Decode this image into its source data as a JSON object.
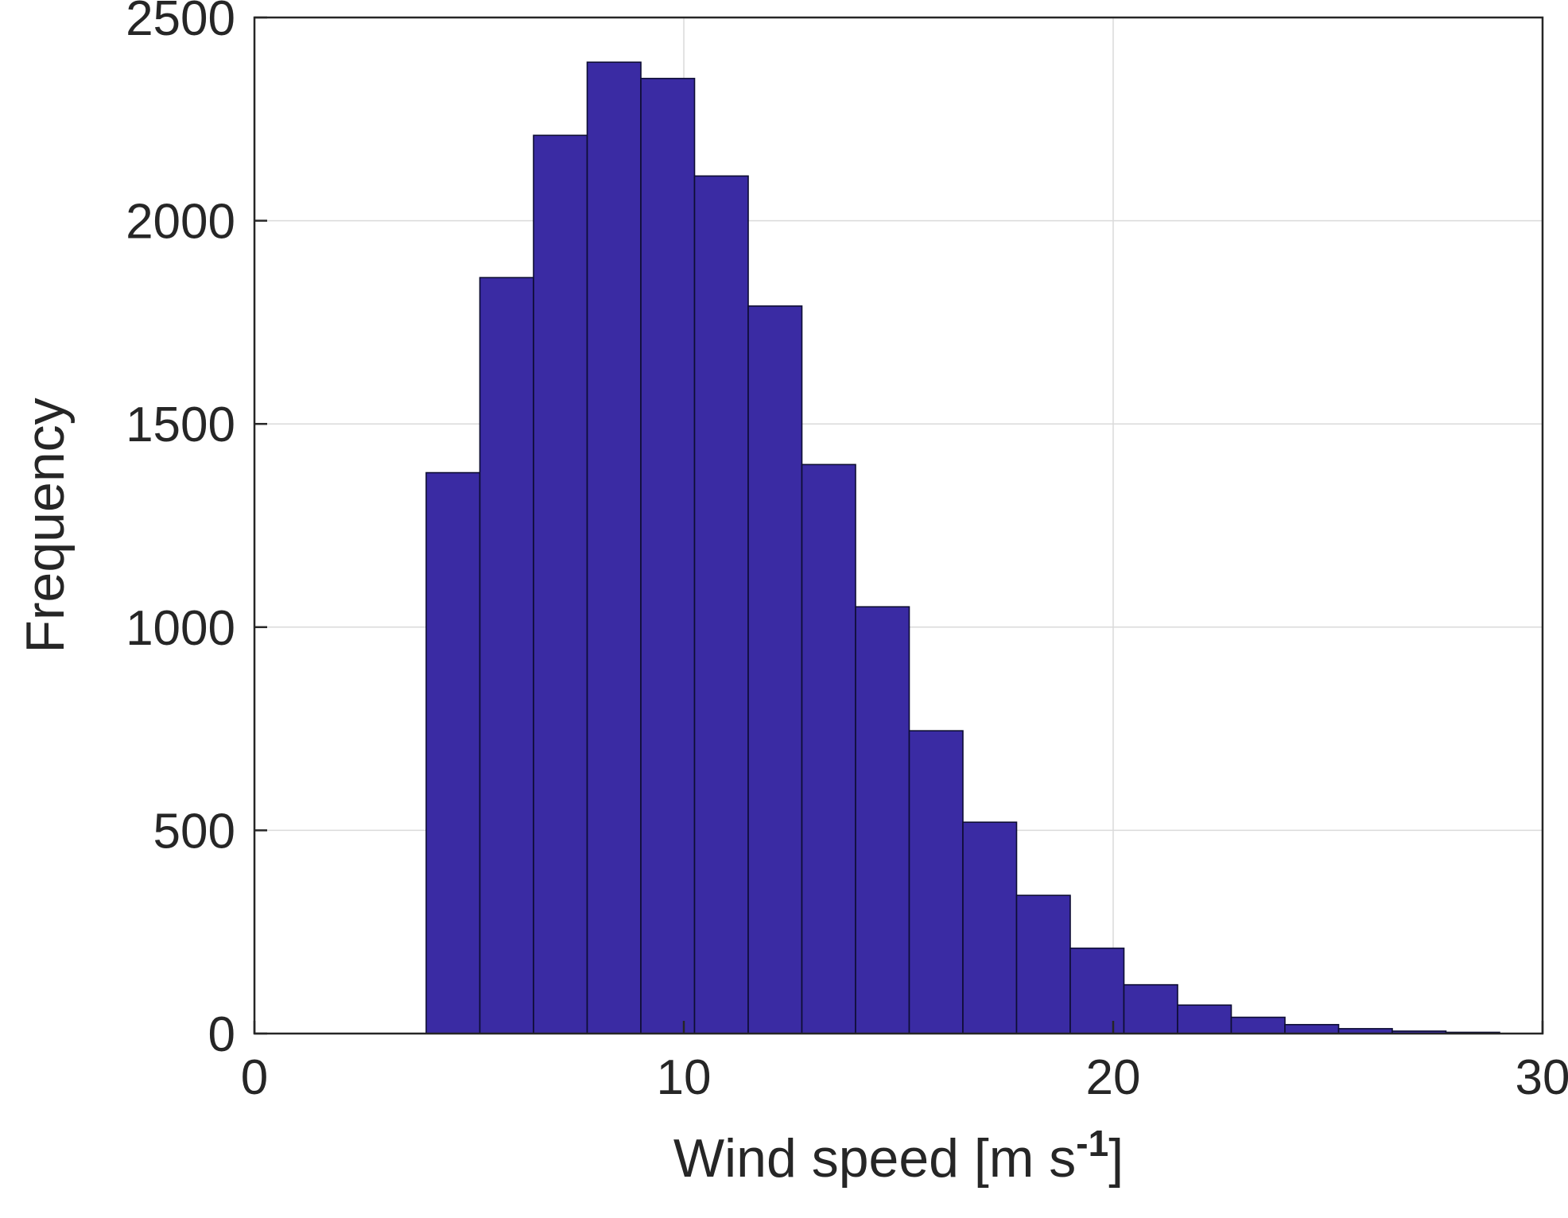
{
  "chart_data": {
    "type": "bar",
    "subtype": "histogram",
    "title": "",
    "ylabel": "Frequency",
    "xlabel_text": "Wind speed [m s-1]",
    "xlabel_parts": [
      "Wind speed [m s",
      "-1",
      "]"
    ],
    "xlim": [
      0,
      30
    ],
    "ylim": [
      0,
      2500
    ],
    "x_ticks": [
      "0",
      "10",
      "20",
      "30"
    ],
    "x_tick_values": [
      0,
      10,
      20,
      30
    ],
    "y_ticks": [
      "0",
      "500",
      "1000",
      "1500",
      "2000",
      "2500"
    ],
    "y_tick_values": [
      0,
      500,
      1000,
      1500,
      2000,
      2500
    ],
    "grid": true,
    "legend": "none",
    "bar_color": "#3a2ba3",
    "bar_edge_color": "#0d0d33",
    "axis_color": "#262626",
    "grid_color": "#dadada",
    "bin_start": 4,
    "bin_width": 1.25,
    "values": [
      1380,
      1860,
      2210,
      2390,
      2350,
      2110,
      1790,
      1400,
      1050,
      745,
      520,
      340,
      210,
      120,
      70,
      40,
      22,
      12,
      6,
      3
    ]
  }
}
